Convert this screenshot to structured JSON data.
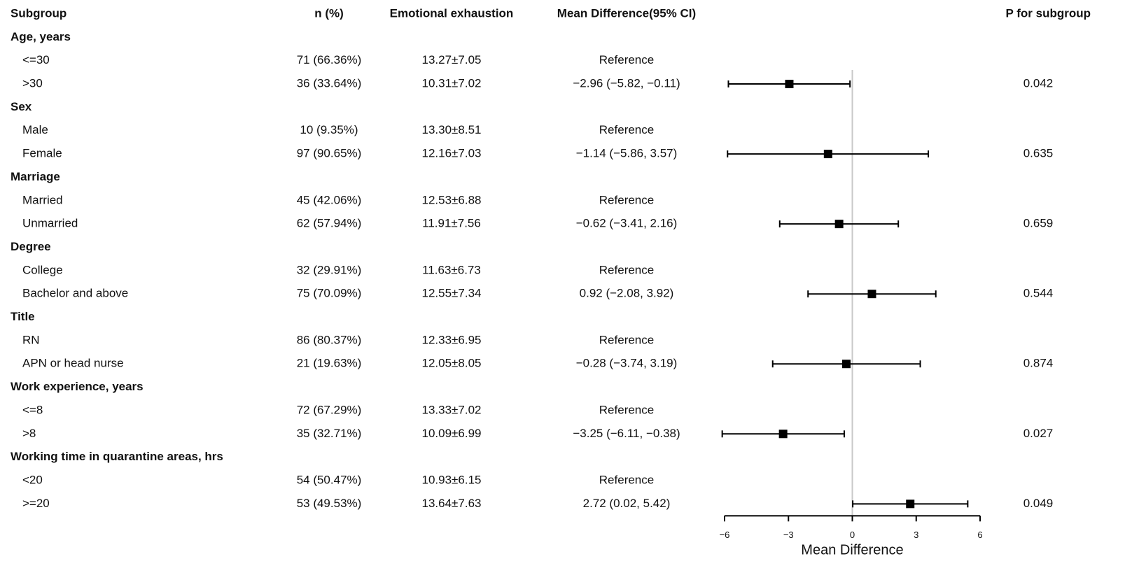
{
  "chart_data": {
    "type": "forest",
    "columns": [
      "Subgroup",
      "n (%)",
      "Emotional exhaustion",
      "Mean Difference(95% CI)",
      "P for subgroup"
    ],
    "groups": [
      {
        "label": "Age, years",
        "rows": [
          {
            "subgroup": "<=30",
            "n": "71 (66.36%)",
            "ee": "13.27±7.05",
            "ci_label": "Reference"
          },
          {
            "subgroup": ">30",
            "n": "36 (33.64%)",
            "ee": "10.31±7.02",
            "ci_label": "−2.96 (−5.82, −0.11)",
            "estimate": -2.96,
            "lower": -5.82,
            "upper": -0.11,
            "p": "0.042"
          }
        ]
      },
      {
        "label": "Sex",
        "rows": [
          {
            "subgroup": "Male",
            "n": "10 (9.35%)",
            "ee": "13.30±8.51",
            "ci_label": "Reference"
          },
          {
            "subgroup": "Female",
            "n": "97 (90.65%)",
            "ee": "12.16±7.03",
            "ci_label": "−1.14 (−5.86, 3.57)",
            "estimate": -1.14,
            "lower": -5.86,
            "upper": 3.57,
            "p": "0.635"
          }
        ]
      },
      {
        "label": "Marriage",
        "rows": [
          {
            "subgroup": "Married",
            "n": "45 (42.06%)",
            "ee": "12.53±6.88",
            "ci_label": "Reference"
          },
          {
            "subgroup": "Unmarried",
            "n": "62 (57.94%)",
            "ee": "11.91±7.56",
            "ci_label": "−0.62 (−3.41, 2.16)",
            "estimate": -0.62,
            "lower": -3.41,
            "upper": 2.16,
            "p": "0.659"
          }
        ]
      },
      {
        "label": "Degree",
        "rows": [
          {
            "subgroup": "College",
            "n": "32 (29.91%)",
            "ee": "11.63±6.73",
            "ci_label": "Reference"
          },
          {
            "subgroup": "Bachelor and above",
            "n": "75 (70.09%)",
            "ee": "12.55±7.34",
            "ci_label": "0.92 (−2.08, 3.92)",
            "estimate": 0.92,
            "lower": -2.08,
            "upper": 3.92,
            "p": "0.544"
          }
        ]
      },
      {
        "label": "Title",
        "rows": [
          {
            "subgroup": "RN",
            "n": "86 (80.37%)",
            "ee": "12.33±6.95",
            "ci_label": "Reference"
          },
          {
            "subgroup": "APN or head nurse",
            "n": "21 (19.63%)",
            "ee": "12.05±8.05",
            "ci_label": "−0.28 (−3.74, 3.19)",
            "estimate": -0.28,
            "lower": -3.74,
            "upper": 3.19,
            "p": "0.874"
          }
        ]
      },
      {
        "label": "Work experience, years",
        "rows": [
          {
            "subgroup": "<=8",
            "n": "72 (67.29%)",
            "ee": "13.33±7.02",
            "ci_label": "Reference"
          },
          {
            "subgroup": ">8",
            "n": "35 (32.71%)",
            "ee": "10.09±6.99",
            "ci_label": "−3.25 (−6.11, −0.38)",
            "estimate": -3.25,
            "lower": -6.11,
            "upper": -0.38,
            "p": "0.027"
          }
        ]
      },
      {
        "label": "Working time in quarantine areas, hrs",
        "rows": [
          {
            "subgroup": "<20",
            "n": "54 (50.47%)",
            "ee": "10.93±6.15",
            "ci_label": "Reference"
          },
          {
            "subgroup": ">=20",
            "n": "53 (49.53%)",
            "ee": "13.64±7.63",
            "ci_label": "2.72 (0.02, 5.42)",
            "estimate": 2.72,
            "lower": 0.02,
            "upper": 5.42,
            "p": "0.049"
          }
        ]
      }
    ],
    "xlabel": "Mean Difference",
    "xlim": [
      -6,
      6
    ],
    "xticks": [
      {
        "value": -6,
        "label": "−6"
      },
      {
        "value": -3,
        "label": "−3"
      },
      0,
      3,
      6
    ],
    "reference_line": 0,
    "color": "#000000"
  }
}
